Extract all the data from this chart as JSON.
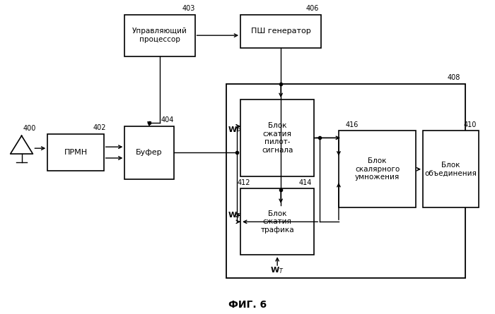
{
  "fig_label": "ФИГ. 6",
  "background_color": "#ffffff",
  "ctrl_label": "Управляющий\nпроцессор",
  "psh_label": "ПШ генератор",
  "prmn_label": "ПРМН",
  "buf_label": "Буфер",
  "pilot_label": "Блок\nсжатия\nпилот-\nсигнала",
  "traf_label": "Блок\nсжатия\nтрафика",
  "scalar_label": "Блок\nскалярного\nумножения",
  "comb_label": "Блок\nобъединения",
  "ids": {
    "ant": "400",
    "prmn": "402",
    "ctrl": "403",
    "buf": "404",
    "psh": "406",
    "outer": "408",
    "comb": "410",
    "pilot_out": "412",
    "traf": "414",
    "scalar": "416"
  }
}
